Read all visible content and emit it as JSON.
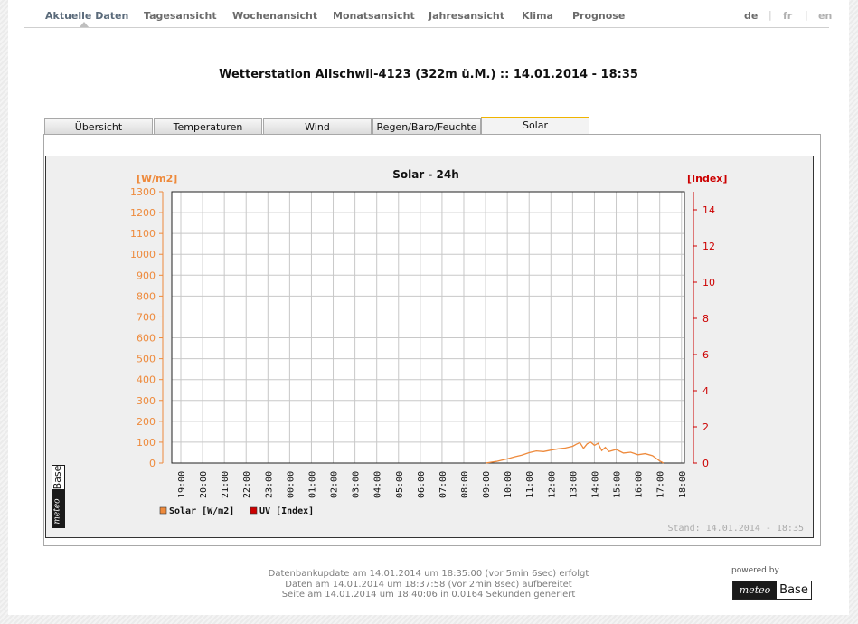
{
  "nav": {
    "items": [
      "Aktuelle Daten",
      "Tagesansicht",
      "Wochenansicht",
      "Monatsansicht",
      "Jahresansicht",
      "Klima",
      "Prognose"
    ],
    "active": "Aktuelle Daten",
    "languages": [
      "de",
      "fr",
      "en"
    ],
    "active_language": "de",
    "separator": "|"
  },
  "page": {
    "title": "Wetterstation Allschwil-4123 (322m ü.M.) :: 14.01.2014 - 18:35"
  },
  "tabs": {
    "items": [
      "Übersicht",
      "Temperaturen",
      "Wind",
      "Regen/Baro/Feuchte",
      "Solar"
    ],
    "active": "Solar"
  },
  "chart_data": {
    "type": "line",
    "title": "Solar - 24h",
    "left_unit": "[W/m2]",
    "right_unit": "[Index]",
    "left_color": "#ee8a3c",
    "right_color": "#cc0000",
    "y_left_range": [
      0,
      1300
    ],
    "y_left_ticks": [
      "0",
      "100",
      "200",
      "300",
      "400",
      "500",
      "600",
      "700",
      "800",
      "900",
      "1000",
      "1100",
      "1200",
      "1300"
    ],
    "y_right_range": [
      0,
      15
    ],
    "y_right_ticks": [
      "0",
      "2",
      "4",
      "6",
      "8",
      "10",
      "12",
      "14"
    ],
    "x_ticks": [
      "19:00",
      "20:00",
      "21:00",
      "22:00",
      "23:00",
      "00:00",
      "01:00",
      "02:00",
      "03:00",
      "04:00",
      "05:00",
      "06:00",
      "07:00",
      "08:00",
      "09:00",
      "10:00",
      "11:00",
      "12:00",
      "13:00",
      "14:00",
      "15:00",
      "16:00",
      "17:00",
      "18:00"
    ],
    "grid": true,
    "legend_position": "bottom-left",
    "series": [
      {
        "name": "Solar [W/m2]",
        "color": "#ee8a3c",
        "axis": "left",
        "x": [
          "09:00",
          "09:30",
          "10:00",
          "10:20",
          "10:40",
          "11:00",
          "11:20",
          "11:40",
          "12:00",
          "12:20",
          "12:40",
          "13:00",
          "13:10",
          "13:20",
          "13:30",
          "13:40",
          "13:50",
          "14:00",
          "14:10",
          "14:20",
          "14:30",
          "14:40",
          "15:00",
          "15:20",
          "15:40",
          "16:00",
          "16:20",
          "16:40",
          "17:00",
          "17:10"
        ],
        "values": [
          0,
          8,
          20,
          30,
          38,
          50,
          58,
          55,
          62,
          68,
          72,
          80,
          90,
          98,
          70,
          92,
          100,
          85,
          95,
          60,
          75,
          55,
          65,
          48,
          52,
          40,
          45,
          35,
          10,
          0
        ]
      },
      {
        "name": "UV [Index]",
        "color": "#cc0000",
        "axis": "right",
        "x": [],
        "values": []
      }
    ],
    "status": "Stand: 14.01.2014 - 18:35"
  },
  "chart_logo": {
    "dark": "meteo",
    "light": "Base"
  },
  "footer": {
    "lines": [
      "Datenbankupdate am 14.01.2014 um 18:35:00 (vor 5min 6sec) erfolgt",
      "Daten am 14.01.2014 um 18:37:58 (vor 2min 8sec) aufbereitet",
      "Seite am 14.01.2014 um 18:40:06 in 0.0164 Sekunden generiert"
    ],
    "powered_by": "powered by",
    "logo_dark": "meteo",
    "logo_light": "Base"
  }
}
